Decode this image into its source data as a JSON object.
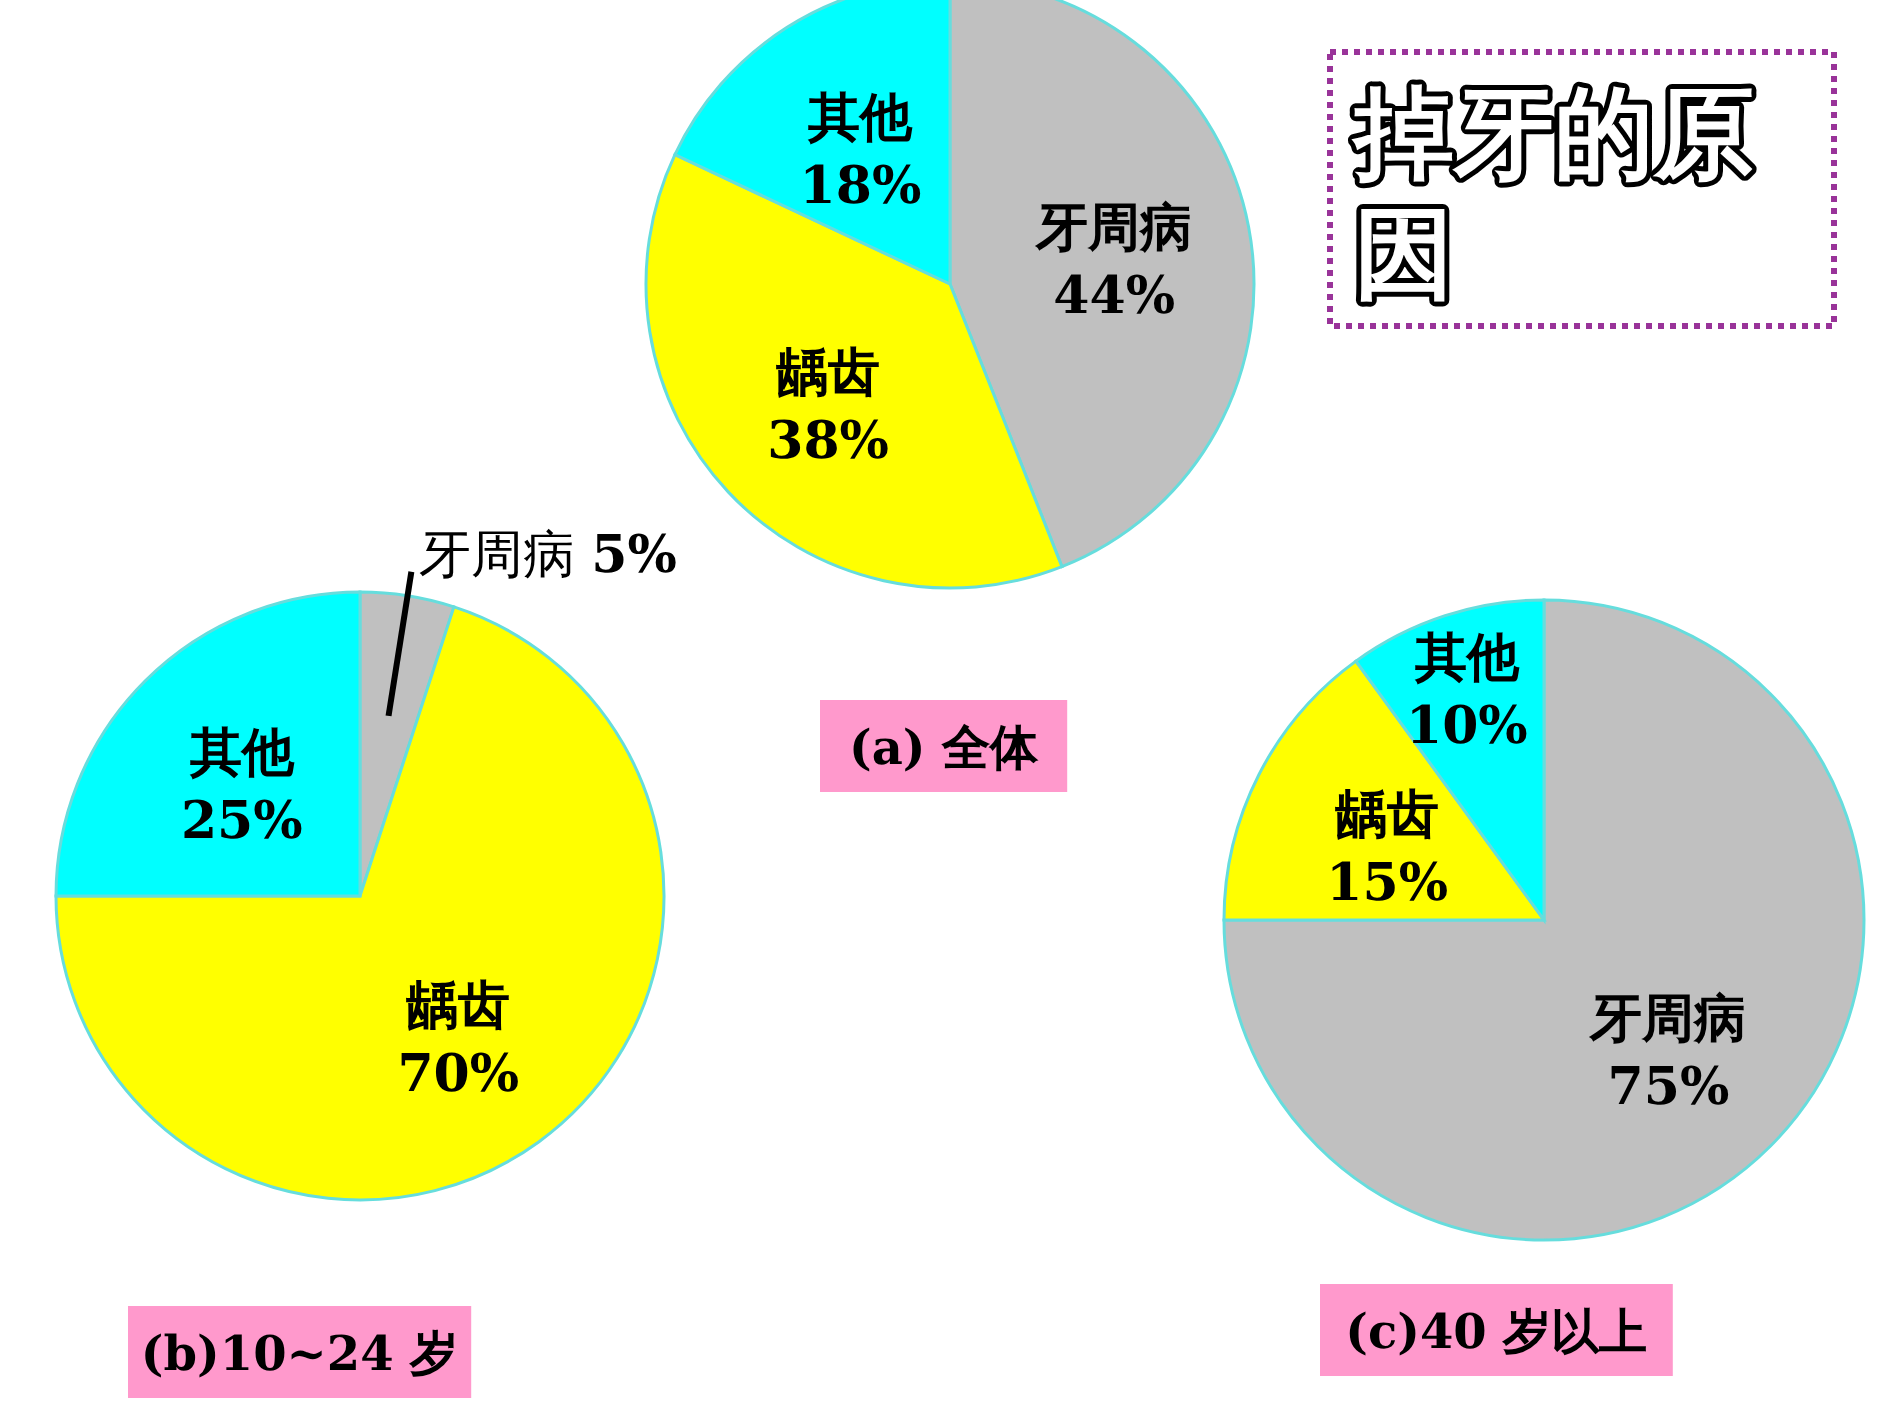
{
  "chart_data": [
    {
      "type": "pie",
      "title": "(a) 全体",
      "categories": [
        "牙周病",
        "龋齿",
        "其他"
      ],
      "values": [
        44,
        38,
        18
      ],
      "colors": [
        "#c0c0c0",
        "#ffff00",
        "#00ffff"
      ],
      "value_labels": [
        "44%",
        "38%",
        "18%"
      ]
    },
    {
      "type": "other",
      "title": "掉牙的原因"
    },
    {
      "type": "pie",
      "title": "(b)10~24 岁",
      "categories": [
        "牙周病",
        "龋齿",
        "其他"
      ],
      "values": [
        5,
        70,
        25
      ],
      "colors": [
        "#c0c0c0",
        "#ffff00",
        "#00ffff"
      ],
      "value_labels": [
        "5%",
        "70%",
        "25%"
      ]
    },
    {
      "type": "pie",
      "title": "(c)40 岁以上",
      "categories": [
        "牙周病",
        "龋齿",
        "其他"
      ],
      "values": [
        75,
        15,
        10
      ],
      "colors": [
        "#c0c0c0",
        "#ffff00",
        "#00ffff"
      ],
      "value_labels": [
        "75%",
        "15%",
        "10%"
      ]
    }
  ]
}
